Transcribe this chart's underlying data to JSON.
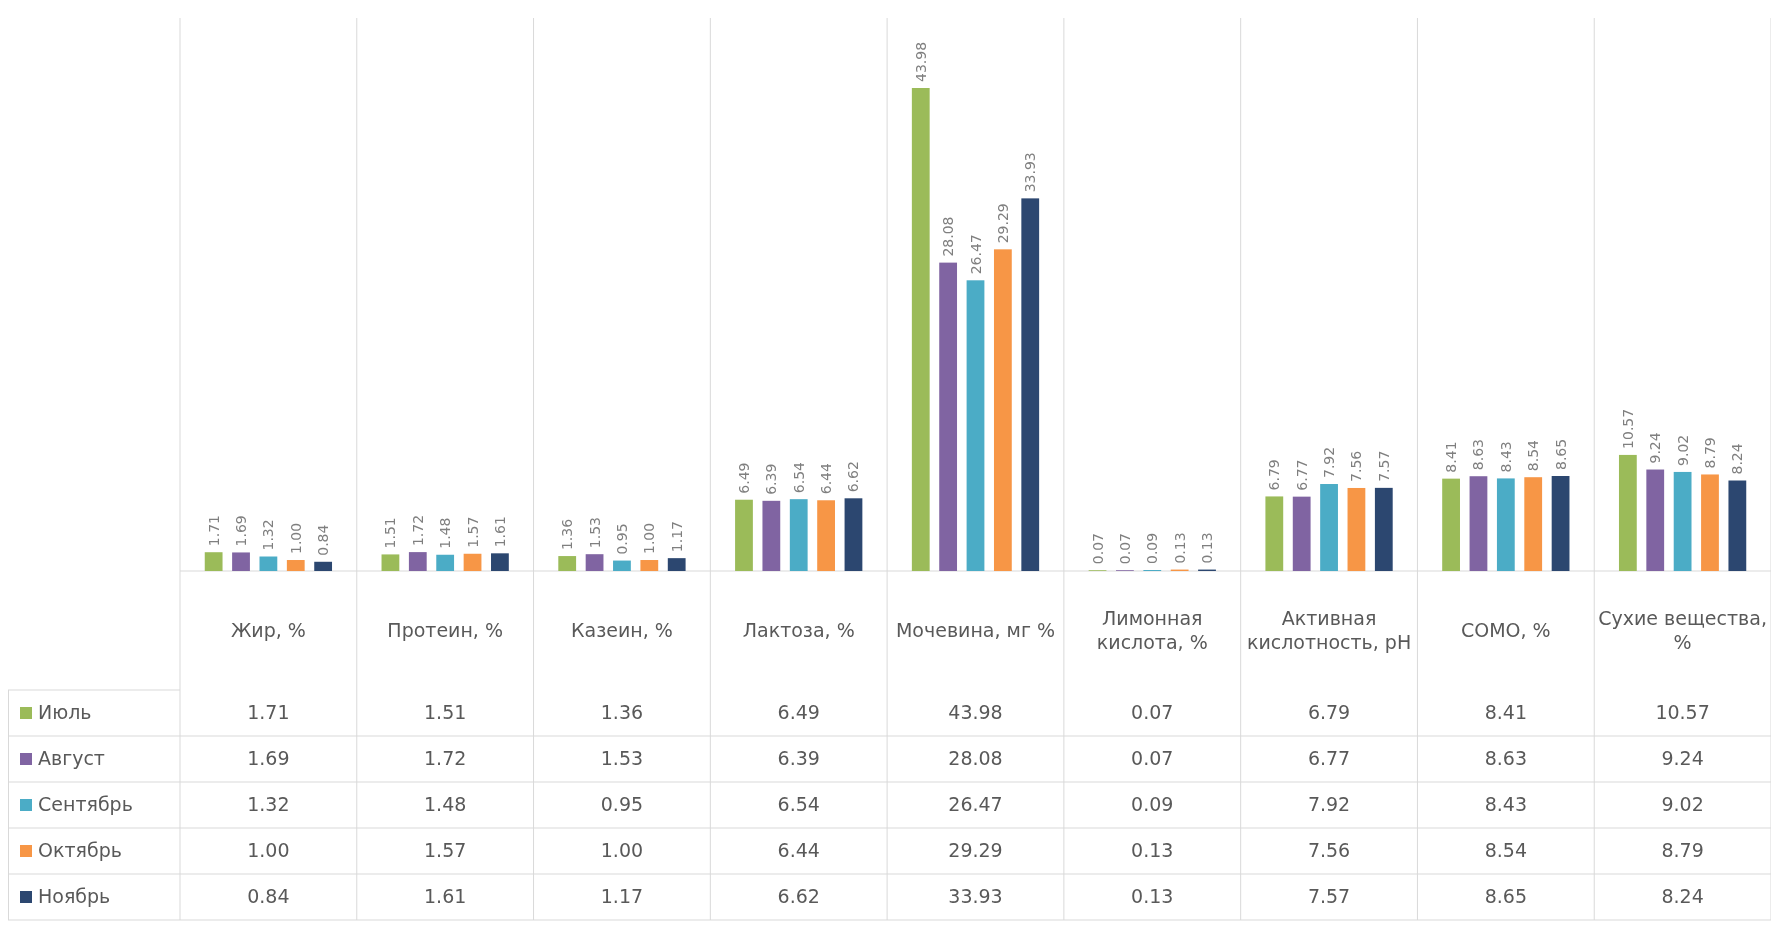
{
  "chart_data": {
    "type": "bar",
    "categories": [
      "Жир, %",
      "Протеин, %",
      "Казеин, %",
      "Лактоза, %",
      "Мочевина, мг %",
      "Лимонная кислота, %",
      "Активная кислотность, рН",
      "СОМО, %",
      "Сухие вещества, %"
    ],
    "series": [
      {
        "name": "Июль",
        "color": "#9bbb59",
        "values": [
          1.71,
          1.51,
          1.36,
          6.49,
          43.98,
          0.07,
          6.79,
          8.41,
          10.57
        ],
        "value_labels": [
          "1.71",
          "1.51",
          "1.36",
          "6.49",
          "43.98",
          "0.07",
          "6.79",
          "8.41",
          "10.57"
        ]
      },
      {
        "name": "Август",
        "color": "#8064a2",
        "values": [
          1.69,
          1.72,
          1.53,
          6.39,
          28.08,
          0.07,
          6.77,
          8.63,
          9.24
        ],
        "value_labels": [
          "1.69",
          "1.72",
          "1.53",
          "6.39",
          "28.08",
          "0.07",
          "6.77",
          "8.63",
          "9.24"
        ]
      },
      {
        "name": "Сентябрь",
        "color": "#4bacc6",
        "values": [
          1.32,
          1.48,
          0.95,
          6.54,
          26.47,
          0.09,
          7.92,
          8.43,
          9.02
        ],
        "value_labels": [
          "1.32",
          "1.48",
          "0.95",
          "6.54",
          "26.47",
          "0.09",
          "7.92",
          "8.43",
          "9.02"
        ]
      },
      {
        "name": "Октябрь",
        "color": "#f79646",
        "values": [
          1.0,
          1.57,
          1.0,
          6.44,
          29.29,
          0.13,
          7.56,
          8.54,
          8.79
        ],
        "value_labels": [
          "1.00",
          "1.57",
          "1.00",
          "6.44",
          "29.29",
          "0.13",
          "7.56",
          "8.54",
          "8.79"
        ]
      },
      {
        "name": "Ноябрь",
        "color": "#2c4770",
        "values": [
          0.84,
          1.61,
          1.17,
          6.62,
          33.93,
          0.13,
          7.57,
          8.65,
          8.24
        ],
        "value_labels": [
          "0.84",
          "1.61",
          "1.17",
          "6.62",
          "33.93",
          "0.13",
          "7.57",
          "8.65",
          "8.24"
        ]
      }
    ],
    "legend": "bottom"
  }
}
